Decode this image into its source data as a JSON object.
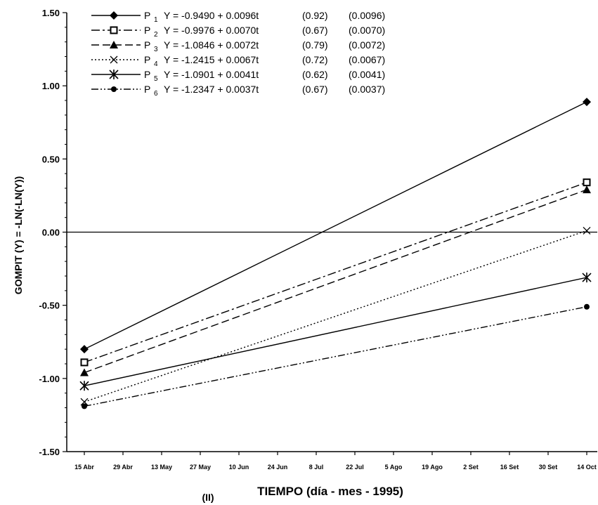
{
  "chart_data": {
    "type": "line",
    "ylabel": "GOMPIT (Y) = -LN(-LN(Y))",
    "xlabel": "TIEMPO (día - mes - 1995)",
    "caption": "(II)",
    "ylim": [
      -1.5,
      1.5
    ],
    "y_ticks": [
      "1.50",
      "1.00",
      "0.50",
      "0.00",
      "-0.50",
      "-1.00",
      "-1.50"
    ],
    "categories": [
      "15 Abr",
      "29 Abr",
      "13 May",
      "27 May",
      "10 Jun",
      "24 Jun",
      "8 Jul",
      "22 Jul",
      "5 Ago",
      "19 Ago",
      "2 Set",
      "16 Set",
      "30 Set",
      "14 Oct"
    ],
    "legend_position": "top-left",
    "grid": false,
    "series": [
      {
        "name": "P 1",
        "label": "P",
        "subscript": "1",
        "equation": "Y = -0.9490 + 0.0096t",
        "r2": "(0.92)",
        "se": "(0.0096)",
        "line_style": "solid",
        "marker": "diamond-filled",
        "x": [
          "15 Abr",
          "14 Oct"
        ],
        "values": [
          -0.8,
          0.89
        ]
      },
      {
        "name": "P 2",
        "label": "P",
        "subscript": "2",
        "equation": "Y = -0.9976 + 0.0070t",
        "r2": "(0.67)",
        "se": "(0.0070)",
        "line_style": "dashdot",
        "marker": "square-open",
        "x": [
          "15 Abr",
          "14 Oct"
        ],
        "values": [
          -0.89,
          0.34
        ]
      },
      {
        "name": "P 3",
        "label": "P",
        "subscript": "3",
        "equation": "Y = -1.0846 + 0.0072t",
        "r2": "(0.79)",
        "se": "(0.0072)",
        "line_style": "dashed",
        "marker": "triangle",
        "x": [
          "15 Abr",
          "14 Oct"
        ],
        "values": [
          -0.96,
          0.29
        ]
      },
      {
        "name": "P 4",
        "label": "P",
        "subscript": "4",
        "equation": "Y = -1.2415 + 0.0067t",
        "r2": "(0.72)",
        "se": "(0.0067)",
        "line_style": "dotted",
        "marker": "x",
        "x": [
          "15 Abr",
          "14 Oct"
        ],
        "values": [
          -1.16,
          0.01
        ]
      },
      {
        "name": "P 5",
        "label": "P",
        "subscript": "5",
        "equation": "Y = -1.0901 + 0.0041t",
        "r2": "(0.62)",
        "se": "(0.0041)",
        "line_style": "solid",
        "marker": "asterisk",
        "x": [
          "15 Abr",
          "14 Oct"
        ],
        "values": [
          -1.05,
          -0.31
        ]
      },
      {
        "name": "P 6",
        "label": "P",
        "subscript": "6",
        "equation": "Y = -1.2347 + 0.0037t",
        "r2": "(0.67)",
        "se": "(0.0037)",
        "line_style": "dashdotdot",
        "marker": "circle-filled",
        "x": [
          "15 Abr",
          "14 Oct"
        ],
        "values": [
          -1.19,
          -0.51
        ]
      }
    ]
  }
}
